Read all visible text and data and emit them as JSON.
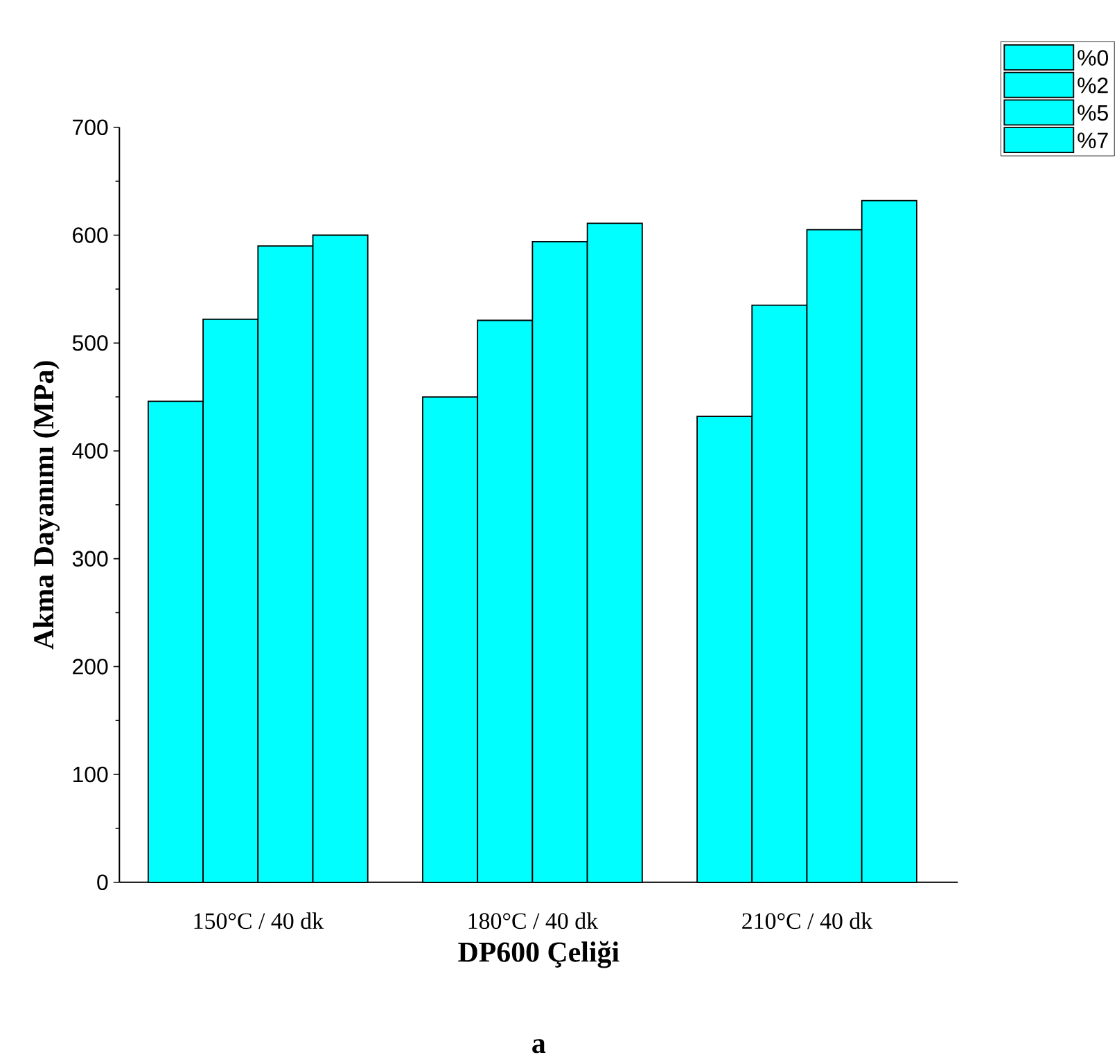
{
  "chart_data": {
    "type": "bar",
    "xlabel": "DP600 Çeliği",
    "ylabel": "Akma Dayanımı (MPa)",
    "categories": [
      "150°C / 40 dk",
      "180°C / 40 dk",
      "210°C / 40 dk"
    ],
    "series": [
      {
        "name": "%0",
        "color": "#00ffff",
        "values": [
          446,
          450,
          432
        ]
      },
      {
        "name": "%2",
        "color": "#00ffff",
        "values": [
          522,
          521,
          535
        ]
      },
      {
        "name": "%5",
        "color": "#00ffff",
        "values": [
          590,
          594,
          605
        ]
      },
      {
        "name": "%7",
        "color": "#00ffff",
        "values": [
          600,
          611,
          632
        ]
      }
    ],
    "ylim": [
      0,
      700
    ],
    "yticks": [
      0,
      100,
      200,
      300,
      400,
      500,
      600,
      700
    ],
    "legend": "top right",
    "grid": false,
    "annotations": [
      "a"
    ]
  }
}
